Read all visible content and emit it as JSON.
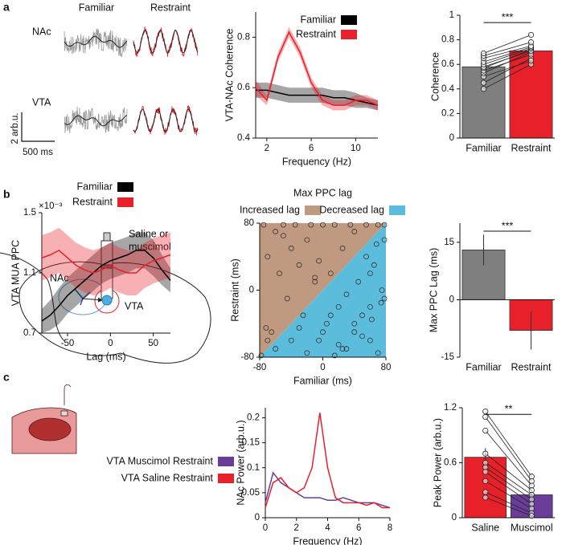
{
  "panel_labels": [
    "a",
    "b",
    "c"
  ],
  "traces": {
    "columns": [
      "Familiar",
      "Restraint"
    ],
    "rows": [
      "NAc",
      "VTA"
    ],
    "scale_y": "2 arb.u.",
    "scale_x": "500 ms"
  },
  "diagram": {
    "injection": [
      "Saline or",
      "muscimol"
    ],
    "nac": "NAc",
    "vta": "VTA"
  },
  "chart_data": [
    {
      "type": "line",
      "y_label": "VTA-NAc Coherence",
      "x_label": "Frequency (Hz)",
      "x": [
        1,
        2,
        3,
        4,
        5,
        6,
        7,
        8,
        9,
        10,
        11,
        12
      ],
      "series": [
        {
          "name": "Familiar",
          "color": "#000000",
          "values": [
            0.59,
            0.59,
            0.58,
            0.57,
            0.57,
            0.57,
            0.57,
            0.56,
            0.56,
            0.55,
            0.54,
            0.53
          ],
          "errors": [
            0.03,
            0.03,
            0.03,
            0.03,
            0.03,
            0.03,
            0.03,
            0.03,
            0.03,
            0.03,
            0.02,
            0.02
          ]
        },
        {
          "name": "Restraint",
          "color": "#e8202a",
          "values": [
            0.6,
            0.55,
            0.72,
            0.82,
            0.74,
            0.62,
            0.55,
            0.53,
            0.53,
            0.55,
            0.55,
            0.53
          ],
          "errors": [
            0.03,
            0.02,
            0.02,
            0.02,
            0.02,
            0.02,
            0.02,
            0.02,
            0.02,
            0.02,
            0.02,
            0.02
          ]
        }
      ],
      "xlim": [
        1,
        12
      ],
      "xticks": [
        2,
        6,
        10
      ],
      "ylim": [
        0.4,
        0.9
      ],
      "yticks": [
        0.4,
        0.6,
        0.8
      ]
    },
    {
      "type": "bar",
      "y_label": "Coherence",
      "categories": [
        "Familiar",
        "Restraint"
      ],
      "values": [
        0.58,
        0.71
      ],
      "errors": [
        0.02,
        0.02
      ],
      "colors": [
        "#7f7f7f",
        "#e8202a"
      ],
      "significance": "***",
      "points": [
        [
          0.4,
          0.45,
          0.5,
          0.53,
          0.55,
          0.57,
          0.58,
          0.6,
          0.62,
          0.65,
          0.67,
          0.69
        ],
        [
          0.6,
          0.65,
          0.63,
          0.7,
          0.68,
          0.72,
          0.71,
          0.73,
          0.74,
          0.75,
          0.78,
          0.84
        ]
      ],
      "ylim": [
        0,
        1
      ],
      "yticks": [
        0,
        0.2,
        0.4,
        0.6,
        0.8,
        1
      ]
    },
    {
      "type": "line",
      "y_label": "VTA MUA PPC",
      "y_multiplier": "×10⁻³",
      "x_label": "Lag (ms)",
      "x": [
        -80,
        -70,
        -60,
        -50,
        -40,
        -30,
        -20,
        -10,
        0,
        10,
        20,
        30,
        40,
        50,
        60,
        70
      ],
      "series": [
        {
          "name": "Familiar",
          "color": "#000000",
          "values": [
            0.78,
            0.82,
            0.88,
            0.95,
            1.0,
            1.05,
            1.1,
            1.15,
            1.18,
            1.2,
            1.22,
            1.25,
            1.25,
            1.2,
            1.12,
            1.05
          ],
          "errors": [
            0.08,
            0.1,
            0.12,
            0.12,
            0.12,
            0.12,
            0.12,
            0.12,
            0.12,
            0.12,
            0.12,
            0.12,
            0.12,
            0.12,
            0.1,
            0.08
          ]
        },
        {
          "name": "Restraint",
          "color": "#e8202a",
          "values": [
            1.2,
            1.22,
            1.25,
            1.2,
            1.15,
            1.12,
            1.1,
            1.12,
            1.15,
            1.12,
            1.1,
            1.1,
            1.15,
            1.18,
            1.2,
            1.22
          ],
          "errors": [
            0.15,
            0.15,
            0.15,
            0.15,
            0.15,
            0.15,
            0.15,
            0.15,
            0.15,
            0.15,
            0.15,
            0.15,
            0.15,
            0.15,
            0.15,
            0.15
          ]
        }
      ],
      "xlim": [
        -80,
        70
      ],
      "xticks": [
        -50,
        0,
        50
      ],
      "ylim": [
        0.7,
        1.5
      ],
      "yticks": [
        0.7,
        1.1,
        1.5
      ]
    },
    {
      "type": "scatter",
      "title": "Max PPC lag",
      "x_label": "Familiar (ms)",
      "y_label": "Restraint (ms)",
      "regions": [
        {
          "name": "Increased lag",
          "color": "#c09a80"
        },
        {
          "name": "Decreased lag",
          "color": "#5bbcdc"
        }
      ],
      "x": [
        -75,
        -70,
        -65,
        -60,
        -55,
        -50,
        -45,
        -40,
        -35,
        -30,
        -25,
        -20,
        -15,
        -10,
        -5,
        0,
        5,
        10,
        15,
        20,
        25,
        30,
        35,
        40,
        45,
        50,
        55,
        60,
        65,
        70,
        75,
        78,
        -78,
        -72,
        -60,
        -40,
        -20,
        0,
        20,
        40,
        60,
        78,
        78,
        70,
        60,
        50,
        30,
        10,
        -10,
        -30,
        -50,
        -70,
        55,
        62,
        68,
        74,
        40,
        25,
        -5,
        15
      ],
      "y": [
        78,
        40,
        -50,
        70,
        20,
        78,
        -10,
        50,
        78,
        30,
        -30,
        60,
        78,
        15,
        -60,
        78,
        -40,
        20,
        78,
        -20,
        50,
        -70,
        78,
        -50,
        10,
        -30,
        78,
        -60,
        30,
        -75,
        0,
        60,
        -78,
        -45,
        -70,
        -60,
        -75,
        -50,
        -65,
        -40,
        -20,
        78,
        -10,
        78,
        20,
        -55,
        -5,
        -30,
        10,
        -45,
        65,
        -60,
        40,
        -35,
        55,
        -15,
        70,
        -70,
        35,
        -78
      ],
      "xlim": [
        -80,
        80
      ],
      "xticks": [
        -80,
        0,
        80
      ],
      "ylim": [
        -80,
        80
      ],
      "yticks": [
        -80,
        0,
        80
      ]
    },
    {
      "type": "bar",
      "y_label": "Max PPC Lag (ms)",
      "categories": [
        "Familiar",
        "Restraint"
      ],
      "values": [
        13,
        -8
      ],
      "errors": [
        4,
        5
      ],
      "colors": [
        "#7f7f7f",
        "#e8202a"
      ],
      "significance": "***",
      "ylim": [
        -15,
        20
      ],
      "yticks": [
        -15,
        0,
        15
      ]
    },
    {
      "type": "line",
      "y_label": "NAc Power (arb.u.)",
      "x_label": "Frequency (Hz)",
      "x": [
        0,
        0.5,
        1,
        1.5,
        2,
        2.5,
        3,
        3.5,
        4,
        4.5,
        5,
        5.5,
        6,
        6.5,
        7,
        7.5,
        8
      ],
      "series": [
        {
          "name": "VTA Muscimol Restraint",
          "color": "#6a3d9a",
          "values": [
            0.03,
            0.09,
            0.07,
            0.06,
            0.05,
            0.04,
            0.04,
            0.04,
            0.035,
            0.035,
            0.04,
            0.035,
            0.03,
            0.03,
            0.03,
            0.025,
            0.02
          ]
        },
        {
          "name": "VTA Saline Restraint",
          "color": "#e8202a",
          "values": [
            0.02,
            0.07,
            0.08,
            0.06,
            0.05,
            0.06,
            0.1,
            0.21,
            0.1,
            0.04,
            0.03,
            0.03,
            0.03,
            0.025,
            0.03,
            0.02,
            0.02
          ]
        }
      ],
      "xlim": [
        0,
        8
      ],
      "xticks": [
        0,
        2,
        4,
        6,
        8
      ],
      "ylim": [
        0,
        0.22
      ],
      "yticks": [
        0,
        0.05,
        0.1,
        0.15,
        0.2
      ]
    },
    {
      "type": "bar",
      "y_label": "Peak Power (arb.u.)",
      "categories": [
        "Saline",
        "Muscimol"
      ],
      "values": [
        0.66,
        0.25
      ],
      "errors": [
        0.1,
        0.05
      ],
      "colors": [
        "#e8202a",
        "#6a3d9a"
      ],
      "significance": "**",
      "points": [
        [
          1.16,
          1.1,
          0.95,
          0.7,
          0.6,
          0.55,
          0.5,
          0.4,
          0.28,
          0.22
        ],
        [
          0.45,
          0.4,
          0.35,
          0.3,
          0.25,
          0.2,
          0.15,
          0.1,
          0.05,
          0.02
        ]
      ],
      "ylim": [
        0,
        1.2
      ],
      "yticks": [
        0,
        0.6,
        1.2
      ]
    }
  ]
}
